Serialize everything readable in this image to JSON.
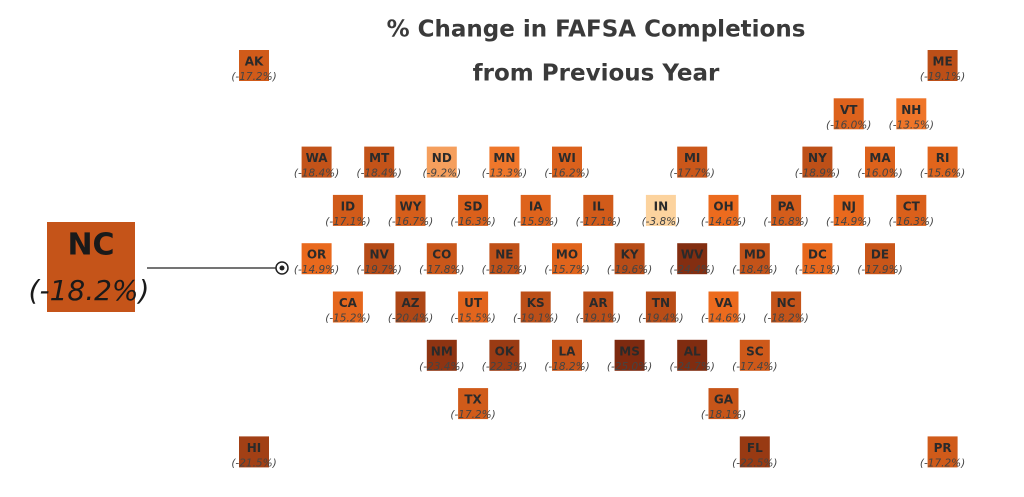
{
  "chart_data": {
    "type": "tile-map",
    "title": [
      "% Change in FAFSA Completions",
      "from Previous Year"
    ],
    "color_stops": [
      "#fcd39e",
      "#ee6c1e",
      "#7d2a10"
    ],
    "highlight": 40,
    "states": [
      "AK",
      "ME",
      "VT",
      "NH",
      "WA",
      "MT",
      "ND",
      "MN",
      "WI",
      "MI",
      "NY",
      "MA",
      "RI",
      "ID",
      "WY",
      "SD",
      "IA",
      "IL",
      "IN",
      "OH",
      "PA",
      "NJ",
      "CT",
      "OR",
      "NV",
      "CO",
      "NE",
      "MO",
      "KY",
      "WV",
      "MD",
      "DC",
      "DE",
      "CA",
      "AZ",
      "UT",
      "KS",
      "AR",
      "TN",
      "VA",
      "NC",
      "NM",
      "OK",
      "LA",
      "MS",
      "AL",
      "SC",
      "TX",
      "GA",
      "HI",
      "FL",
      "PR"
    ],
    "values": [
      -17.2,
      -19.1,
      -16.0,
      -13.5,
      -18.4,
      -18.4,
      -9.2,
      -13.3,
      -16.2,
      -17.7,
      -18.9,
      -16.0,
      -15.6,
      -17.1,
      -16.7,
      -16.3,
      -15.9,
      -17.1,
      -3.8,
      -14.6,
      -16.8,
      -14.9,
      -16.3,
      -14.9,
      -19.7,
      -17.8,
      -18.7,
      -15.7,
      -19.6,
      -24.4,
      -18.4,
      -15.1,
      -17.9,
      -15.2,
      -20.4,
      -15.5,
      -19.1,
      -19.1,
      -19.4,
      -14.6,
      -18.2,
      -23.4,
      -22.3,
      -18.2,
      -25.0,
      -24.7,
      -17.4,
      -17.2,
      -18.1,
      -21.5,
      -22.5,
      -17.2
    ],
    "value_labels": [
      "(-17.2%)",
      "(-19.1%)",
      "(-16.0%)",
      "(-13.5%)",
      "(-18.4%)",
      "(-18.4%)",
      "(-9.2%)",
      "(-13.3%)",
      "(-16.2%)",
      "(-17.7%)",
      "(-18.9%)",
      "(-16.0%)",
      "(-15.6%)",
      "(-17.1%)",
      "(-16.7%)",
      "(-16.3%)",
      "(-15.9%)",
      "(-17.1%)",
      "(-3.8%)",
      "(-14.6%)",
      "(-16.8%)",
      "(-14.9%)",
      "(-16.3%)",
      "(-14.9%)",
      "(-19.7%)",
      "(-17.8%)",
      "(-18.7%)",
      "(-15.7%)",
      "(-19.6%)",
      "(-24.4%)",
      "(-18.4%)",
      "(-15.1%)",
      "(-17.9%)",
      "(-15.2%)",
      "(-20.4%)",
      "(-15.5%)",
      "(-19.1%)",
      "(-19.1%)",
      "(-19.4%)",
      "(-14.6%)",
      "(-18.2%)",
      "(-23.4%)",
      "(-22.3%)",
      "(-18.2%)",
      "(-25.0%)",
      "(-24.7%)",
      "(-17.4%)",
      "(-17.2%)",
      "(-18.1%)",
      "(-21.5%)",
      "(-22.5%)",
      "(-17.2%)"
    ]
  }
}
